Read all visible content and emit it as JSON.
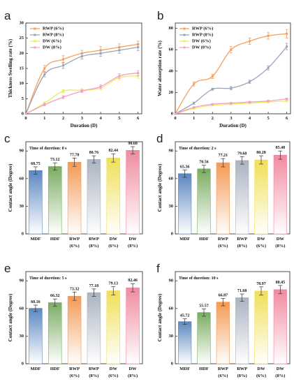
{
  "panel_letters": [
    "a",
    "b",
    "c",
    "d",
    "e",
    "f"
  ],
  "colors": {
    "rwp6": "#f5a05f",
    "rwp8": "#9aa6b8",
    "dw6": "#ecec5a",
    "dw8": "#f3a0c6",
    "bars": [
      "#5b87c0",
      "#79ad61",
      "#f39a55",
      "#aab3c2",
      "#f0df56",
      "#f08aa0"
    ]
  },
  "chart_data": [
    {
      "panel": "a",
      "type": "line",
      "xlabel": "Duration (D)",
      "ylabel": "Thickness Swelling rate (%)",
      "x": [
        0,
        1,
        2,
        3,
        4,
        5,
        6
      ],
      "xlim": [
        0,
        6.2
      ],
      "ylim": [
        0,
        30
      ],
      "xticks": [
        "0",
        "1",
        "2",
        "3",
        "4",
        "5",
        "6"
      ],
      "yticks": [
        "0",
        "5",
        "10",
        "15",
        "20",
        "25",
        "30"
      ],
      "legend": "top-left",
      "series": [
        {
          "name": "RWP (6%)",
          "color_key": "rwp6",
          "values": [
            0,
            15,
            18,
            20,
            21,
            22,
            23
          ],
          "errors": [
            0,
            1,
            1.2,
            1,
            1.2,
            1.1,
            1
          ]
        },
        {
          "name": "RWP (8%)",
          "color_key": "rwp8",
          "values": [
            0,
            13,
            16,
            19,
            20,
            21,
            22
          ],
          "errors": [
            0,
            0.8,
            1,
            0.9,
            1,
            1,
            1.1
          ]
        },
        {
          "name": "DW (6%)",
          "color_key": "dw6",
          "values": [
            0,
            3.5,
            7.5,
            7.8,
            8.5,
            12,
            12.5
          ],
          "errors": [
            0,
            0.4,
            0.5,
            0.5,
            0.6,
            0.8,
            0.8
          ]
        },
        {
          "name": "DW (8%)",
          "color_key": "dw8",
          "values": [
            0,
            3,
            5.5,
            7.5,
            9,
            12.5,
            13.5
          ],
          "errors": [
            0,
            0.4,
            0.5,
            0.5,
            0.6,
            0.8,
            0.8
          ]
        }
      ]
    },
    {
      "panel": "b",
      "type": "line",
      "xlabel": "Duration (D)",
      "ylabel": "Water absorption rate (%)",
      "x": [
        0,
        1,
        2,
        3,
        4,
        5,
        6
      ],
      "xlim": [
        0,
        6.2
      ],
      "ylim": [
        0,
        85
      ],
      "xticks": [
        "0",
        "1",
        "2",
        "3",
        "4",
        "5",
        "6"
      ],
      "yticks": [
        "0",
        "20",
        "40",
        "60",
        "80"
      ],
      "legend": "top-left",
      "series": [
        {
          "name": "RWP (6%)",
          "color_key": "rwp6",
          "values": [
            0,
            28,
            35,
            60,
            68,
            73,
            75
          ],
          "errors": [
            0,
            2,
            2,
            3,
            3,
            3,
            4
          ]
        },
        {
          "name": "RWP (8%)",
          "color_key": "rwp8",
          "values": [
            0,
            10,
            23,
            24,
            30,
            43,
            63
          ],
          "errors": [
            0,
            1,
            1,
            1.5,
            1.5,
            2,
            3
          ]
        },
        {
          "name": "DW (6%)",
          "color_key": "dw6",
          "values": [
            0,
            5,
            8,
            9,
            10,
            11,
            12
          ],
          "errors": [
            0,
            0.6,
            0.6,
            0.6,
            0.7,
            0.7,
            0.8
          ]
        },
        {
          "name": "DW (8%)",
          "color_key": "dw8",
          "values": [
            0,
            6,
            9,
            10,
            11,
            12,
            14
          ],
          "errors": [
            0,
            0.6,
            0.6,
            0.6,
            0.7,
            0.7,
            0.8
          ]
        }
      ]
    },
    {
      "panel": "c",
      "type": "bar",
      "annotation": "Time of duretion:  0 s",
      "ylabel": "Contact angle (Degree)",
      "categories": [
        "MDF",
        "HDF",
        "RWP\n(6%)",
        "RWP\n(8%)",
        "DW\n(6%)",
        "DW\n(8%)"
      ],
      "values": [
        68.75,
        73.12,
        77.78,
        80.76,
        82.44,
        90.68
      ],
      "value_labels": [
        "68.75",
        "73.12",
        "77.78",
        "80.76",
        "82.44",
        "90.68"
      ],
      "errors": [
        4,
        4,
        4.5,
        4,
        4.5,
        4
      ],
      "ylim": [
        0,
        100
      ],
      "yticks": [
        "0",
        "30",
        "60",
        "90"
      ]
    },
    {
      "panel": "d",
      "type": "bar",
      "annotation": "Time of duretion:  2 s",
      "ylabel": "Contact angle (Degree)",
      "categories": [
        "MDF",
        "HDF",
        "RWP\n(6%)",
        "RWP\n(8%)",
        "DW\n(6%)",
        "DW\n(8%)"
      ],
      "values": [
        65.36,
        70.56,
        77.21,
        79.68,
        80.28,
        85.48
      ],
      "value_labels": [
        "65.36",
        "70.56",
        "77.21",
        "79.68",
        "80.28",
        "85.48"
      ],
      "errors": [
        4,
        4,
        4.5,
        4,
        4.5,
        4.5
      ],
      "ylim": [
        0,
        100
      ],
      "yticks": [
        "0",
        "30",
        "60",
        "90"
      ]
    },
    {
      "panel": "e",
      "type": "bar",
      "annotation": "Time of duretion:  5 s",
      "ylabel": "Contact angle (Degree)",
      "categories": [
        "MDF",
        "HDF",
        "RWP\n(6%)",
        "RWP\n(8%)",
        "DW\n(6%)",
        "DW\n(8%)"
      ],
      "values": [
        60.16,
        66.32,
        73.32,
        77.18,
        79.13,
        82.46
      ],
      "value_labels": [
        "60.16",
        "66.32",
        "73.32",
        "77.18",
        "79.13",
        "82.46"
      ],
      "errors": [
        3.5,
        4,
        4.5,
        4,
        4.5,
        4.5
      ],
      "ylim": [
        0,
        100
      ],
      "yticks": [
        "0",
        "30",
        "60",
        "90"
      ]
    },
    {
      "panel": "f",
      "type": "bar",
      "annotation": "Time of duretion:  10 s",
      "ylabel": "Contact angle (Degree)",
      "categories": [
        "MDF",
        "HDF",
        "RWP\n(6%)",
        "RWP\n(8%)",
        "DW\n(6%)",
        "DW\n(8%)"
      ],
      "values": [
        45.72,
        55.57,
        66.87,
        71.68,
        78.97,
        80.45
      ],
      "value_labels": [
        "45.72",
        "55.57",
        "66.87",
        "71.68",
        "78.97",
        "80.45"
      ],
      "errors": [
        3,
        4,
        4,
        4,
        4.5,
        4.5
      ],
      "ylim": [
        0,
        100
      ],
      "yticks": [
        "0",
        "30",
        "60",
        "90"
      ]
    }
  ]
}
